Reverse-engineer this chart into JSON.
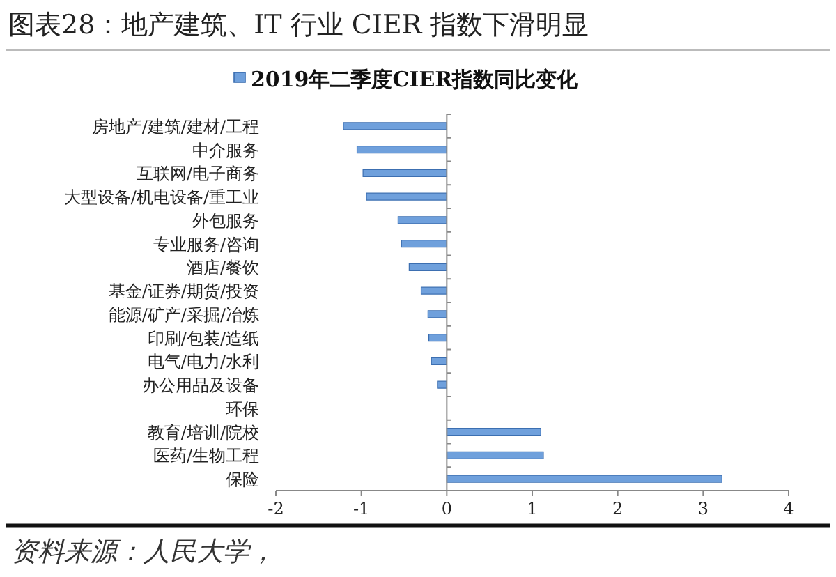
{
  "chart_data": {
    "type": "bar",
    "orientation": "horizontal",
    "title": "图表28：地产建筑、IT 行业 CIER 指数下滑明显",
    "categories": [
      "房地产/建筑/建材/工程",
      "中介服务",
      "互联网/电子商务",
      "大型设备/机电设备/重工业",
      "外包服务",
      "专业服务/咨询",
      "酒店/餐饮",
      "基金/证券/期货/投资",
      "能源/矿产/采掘/冶炼",
      "印刷/包装/造纸",
      "电气/电力/水利",
      "办公用品及设备",
      "环保",
      "教育/培训/院校",
      "医药/生物工程",
      "保险"
    ],
    "series": [
      {
        "name": "2019年二季度CIER指数同比变化",
        "color": "#6fa0dc",
        "values": [
          -1.21,
          -1.05,
          -0.98,
          -0.94,
          -0.57,
          -0.53,
          -0.44,
          -0.3,
          -0.22,
          -0.21,
          -0.18,
          -0.11,
          null,
          1.1,
          1.13,
          3.22
        ]
      }
    ],
    "xlim": [
      -2,
      4
    ],
    "xticks": [
      -2,
      -1,
      0,
      1,
      2,
      3,
      4
    ],
    "legend": "top",
    "annotations": [
      "资料来源：人民大学，"
    ]
  }
}
